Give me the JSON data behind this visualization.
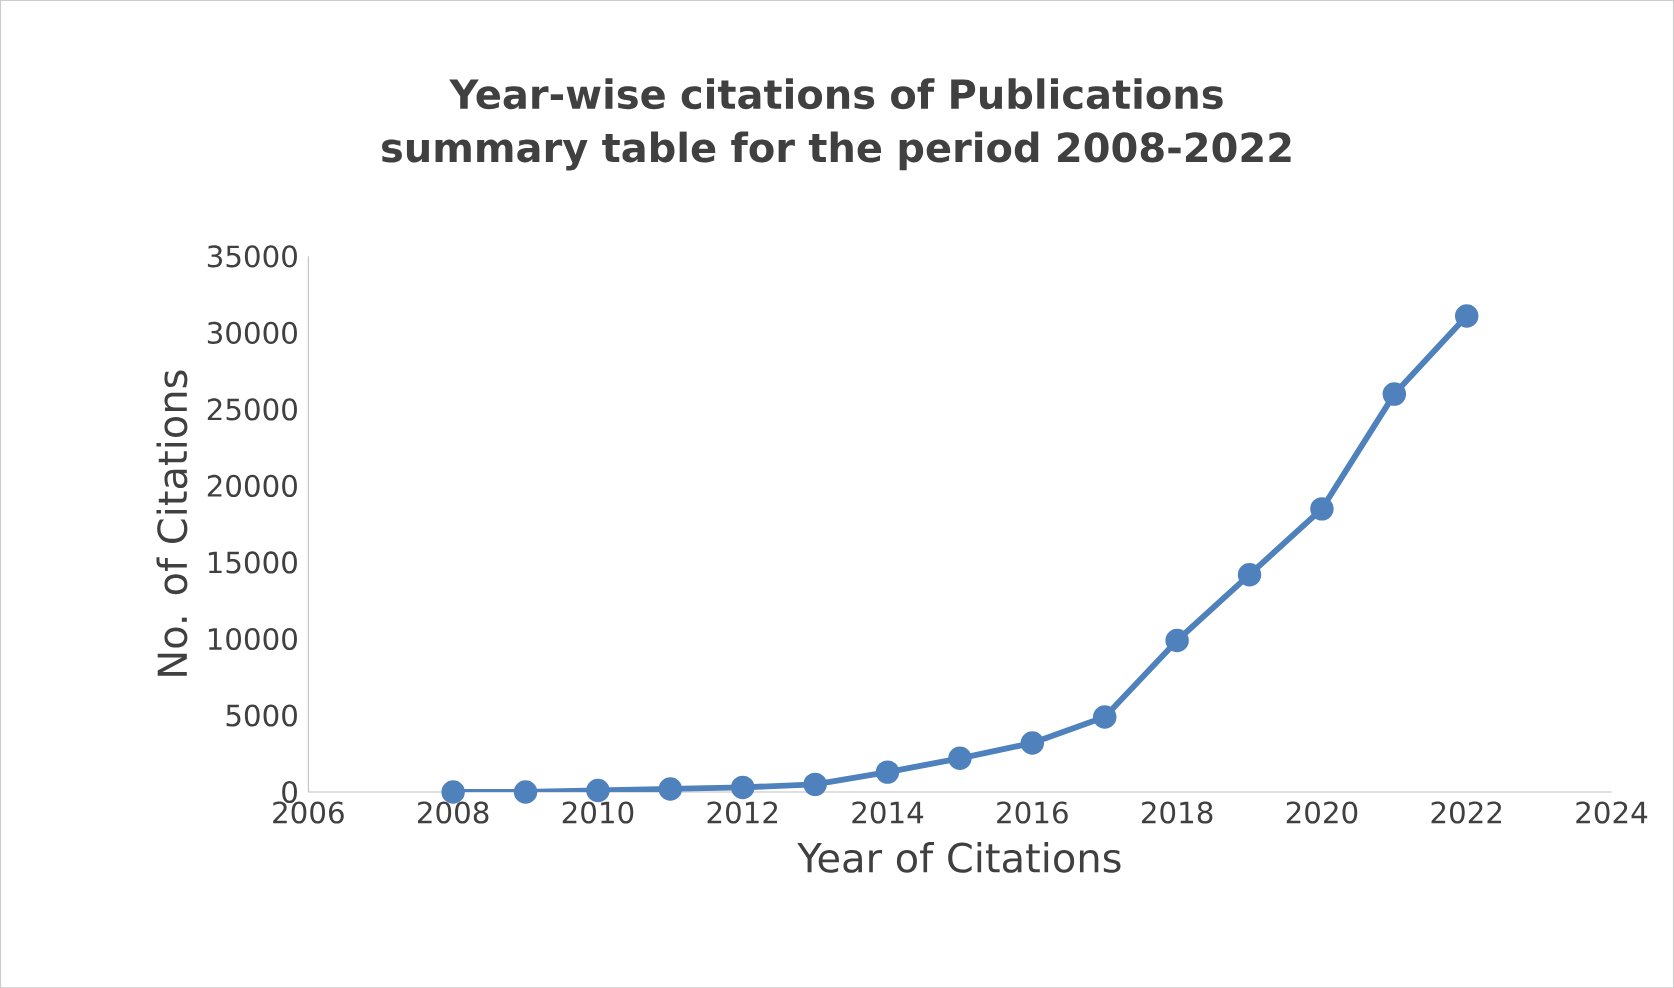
{
  "chart_data": {
    "type": "line",
    "title": "Year-wise citations of Publications summary table for the period 2008-2022",
    "xlabel": "Year of Citations",
    "ylabel": "No. of Citations",
    "x": [
      2008,
      2009,
      2010,
      2011,
      2012,
      2013,
      2014,
      2015,
      2016,
      2017,
      2018,
      2019,
      2020,
      2021,
      2022
    ],
    "series": [
      {
        "color": "#4f81bd",
        "values": [
          0,
          0,
          100,
          200,
          300,
          500,
          1300,
          2200,
          3200,
          4900,
          9900,
          14200,
          18500,
          26000,
          31100
        ]
      }
    ],
    "xlim": [
      2006,
      2024
    ],
    "xticks": [
      2006,
      2008,
      2010,
      2012,
      2014,
      2016,
      2018,
      2020,
      2022,
      2024
    ],
    "ylim": [
      0,
      35000
    ],
    "yticks": [
      0,
      5000,
      10000,
      15000,
      20000,
      25000,
      30000,
      35000
    ],
    "grid": false,
    "marker": "circle",
    "line_style": "solid"
  }
}
